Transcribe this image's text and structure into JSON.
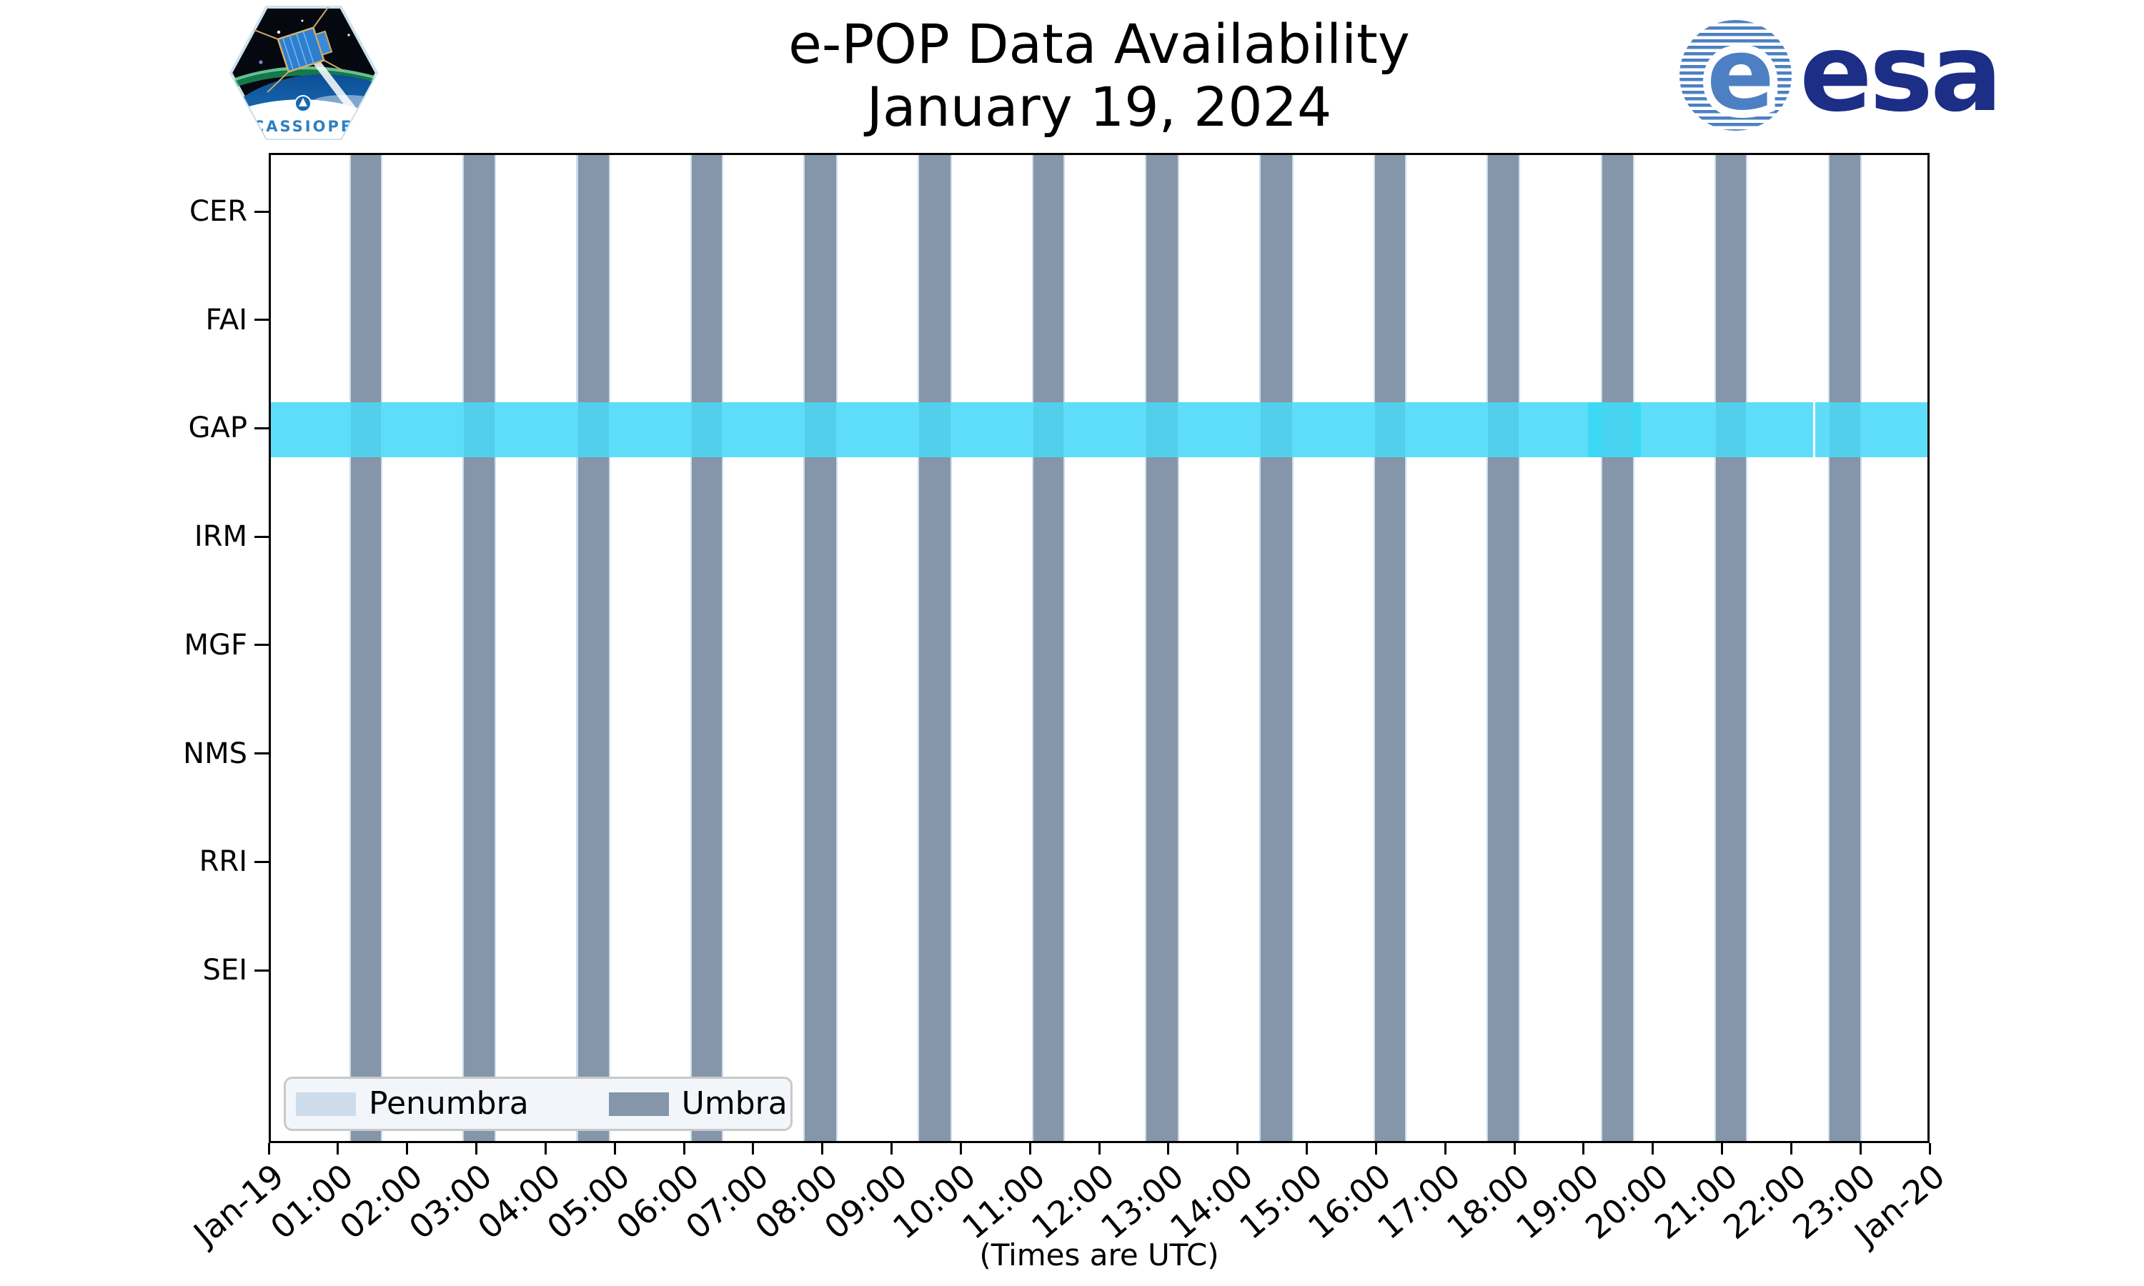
{
  "header": {
    "title_line1": "e-POP Data Availability",
    "title_line2": "January 19, 2024",
    "cassiope_patch_label": "CASSIOPE",
    "esa_symbol": "e",
    "esa_wordmark": "esa"
  },
  "chart_data": {
    "type": "bar",
    "subtype": "timeline-availability-gantt",
    "title": "e-POP Data Availability",
    "subtitle": "January 19, 2024",
    "instruments": [
      "CER",
      "FAI",
      "GAP",
      "IRM",
      "MGF",
      "NMS",
      "RRI",
      "SEI"
    ],
    "x_tick_labels": [
      "Jan-19",
      "01:00",
      "02:00",
      "03:00",
      "04:00",
      "05:00",
      "06:00",
      "07:00",
      "08:00",
      "09:00",
      "10:00",
      "11:00",
      "12:00",
      "13:00",
      "14:00",
      "15:00",
      "16:00",
      "17:00",
      "18:00",
      "19:00",
      "20:00",
      "21:00",
      "22:00",
      "23:00",
      "Jan-20"
    ],
    "x_axis_note": "(Times are UTC)",
    "x_range_hours": [
      0,
      24
    ],
    "grid": false,
    "legend": {
      "position": "lower left",
      "items": [
        {
          "label": "Penumbra",
          "color": "#CCDCEB"
        },
        {
          "label": "Umbra",
          "color": "#8596AA"
        }
      ]
    },
    "umbra_intervals_utc": [
      [
        "01:11",
        "01:37"
      ],
      [
        "02:49",
        "03:16"
      ],
      [
        "04:28",
        "04:55"
      ],
      [
        "06:07",
        "06:33"
      ],
      [
        "07:45",
        "08:12"
      ],
      [
        "09:24",
        "09:51"
      ],
      [
        "11:03",
        "11:29"
      ],
      [
        "12:41",
        "13:08"
      ],
      [
        "14:20",
        "14:47"
      ],
      [
        "15:59",
        "16:25"
      ],
      [
        "17:37",
        "18:04"
      ],
      [
        "19:16",
        "19:43"
      ],
      [
        "20:55",
        "21:21"
      ],
      [
        "22:33",
        "23:00"
      ]
    ],
    "penumbra_halfwidth_hours": 0.021,
    "gap_availability": {
      "instrument": "GAP",
      "segments_hours": [
        [
          0,
          22.317
        ],
        [
          22.348,
          24
        ]
      ],
      "segments_utc": [
        [
          "00:00",
          "22:19"
        ],
        [
          "22:21",
          "24:00"
        ]
      ],
      "double_coverage_hours": [
        19.06,
        19.83
      ],
      "double_coverage_utc": [
        "19:04",
        "19:50"
      ]
    },
    "colors": {
      "umbra": "#8596AA",
      "penumbra": "#CCDCEB",
      "gap_band": "#5EDDF8",
      "gap_band_umbra_overlap": "#52CFEA",
      "gap_band_double": "#3ED8F7",
      "gap_band_double_umbra_overlap": "#48D3F1",
      "axis": "#000000",
      "legend_bg": "#F2F5FA",
      "esa_blue": "#1C2E86",
      "esa_stripe_blue": "#4D80C3",
      "cassiope_text_blue": "#2E7FC2"
    }
  }
}
